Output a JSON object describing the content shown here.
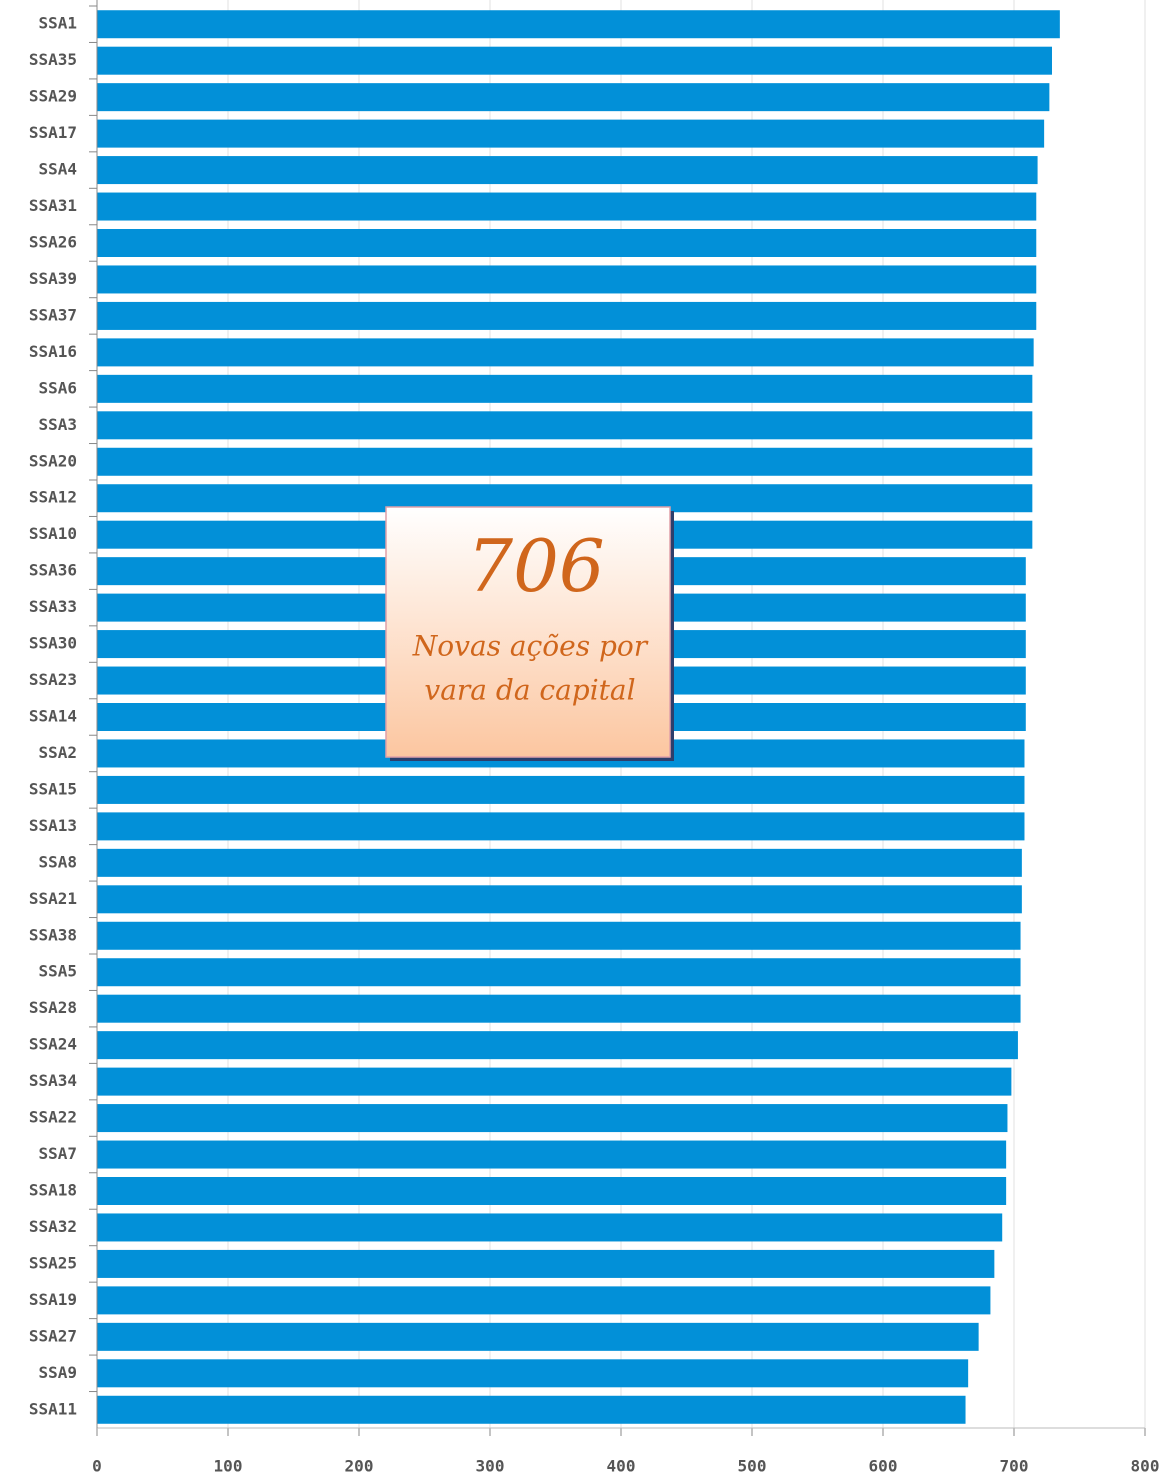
{
  "chart_data": {
    "type": "barh",
    "categories": [
      "SSA1",
      "SSA35",
      "SSA29",
      "SSA17",
      "SSA4",
      "SSA31",
      "SSA26",
      "SSA39",
      "SSA37",
      "SSA16",
      "SSA6",
      "SSA3",
      "SSA20",
      "SSA12",
      "SSA10",
      "SSA36",
      "SSA33",
      "SSA30",
      "SSA23",
      "SSA14",
      "SSA2",
      "SSA15",
      "SSA13",
      "SSA8",
      "SSA21",
      "SSA38",
      "SSA5",
      "SSA28",
      "SSA24",
      "SSA34",
      "SSA22",
      "SSA7",
      "SSA18",
      "SSA32",
      "SSA25",
      "SSA19",
      "SSA27",
      "SSA9",
      "SSA11"
    ],
    "values": [
      735,
      729,
      727,
      723,
      718,
      717,
      717,
      717,
      717,
      715,
      714,
      714,
      714,
      714,
      714,
      709,
      709,
      709,
      709,
      709,
      708,
      708,
      708,
      706,
      706,
      705,
      705,
      705,
      703,
      698,
      695,
      694,
      694,
      691,
      685,
      682,
      673,
      665,
      663
    ],
    "color": "#0290d8",
    "xlim": [
      0,
      800
    ],
    "xticks": [
      0,
      100,
      200,
      300,
      400,
      500,
      600,
      700,
      800
    ],
    "grid": true,
    "annotation": {
      "value": 706,
      "lines": [
        "Novas ações por",
        "vara da capital"
      ]
    }
  }
}
